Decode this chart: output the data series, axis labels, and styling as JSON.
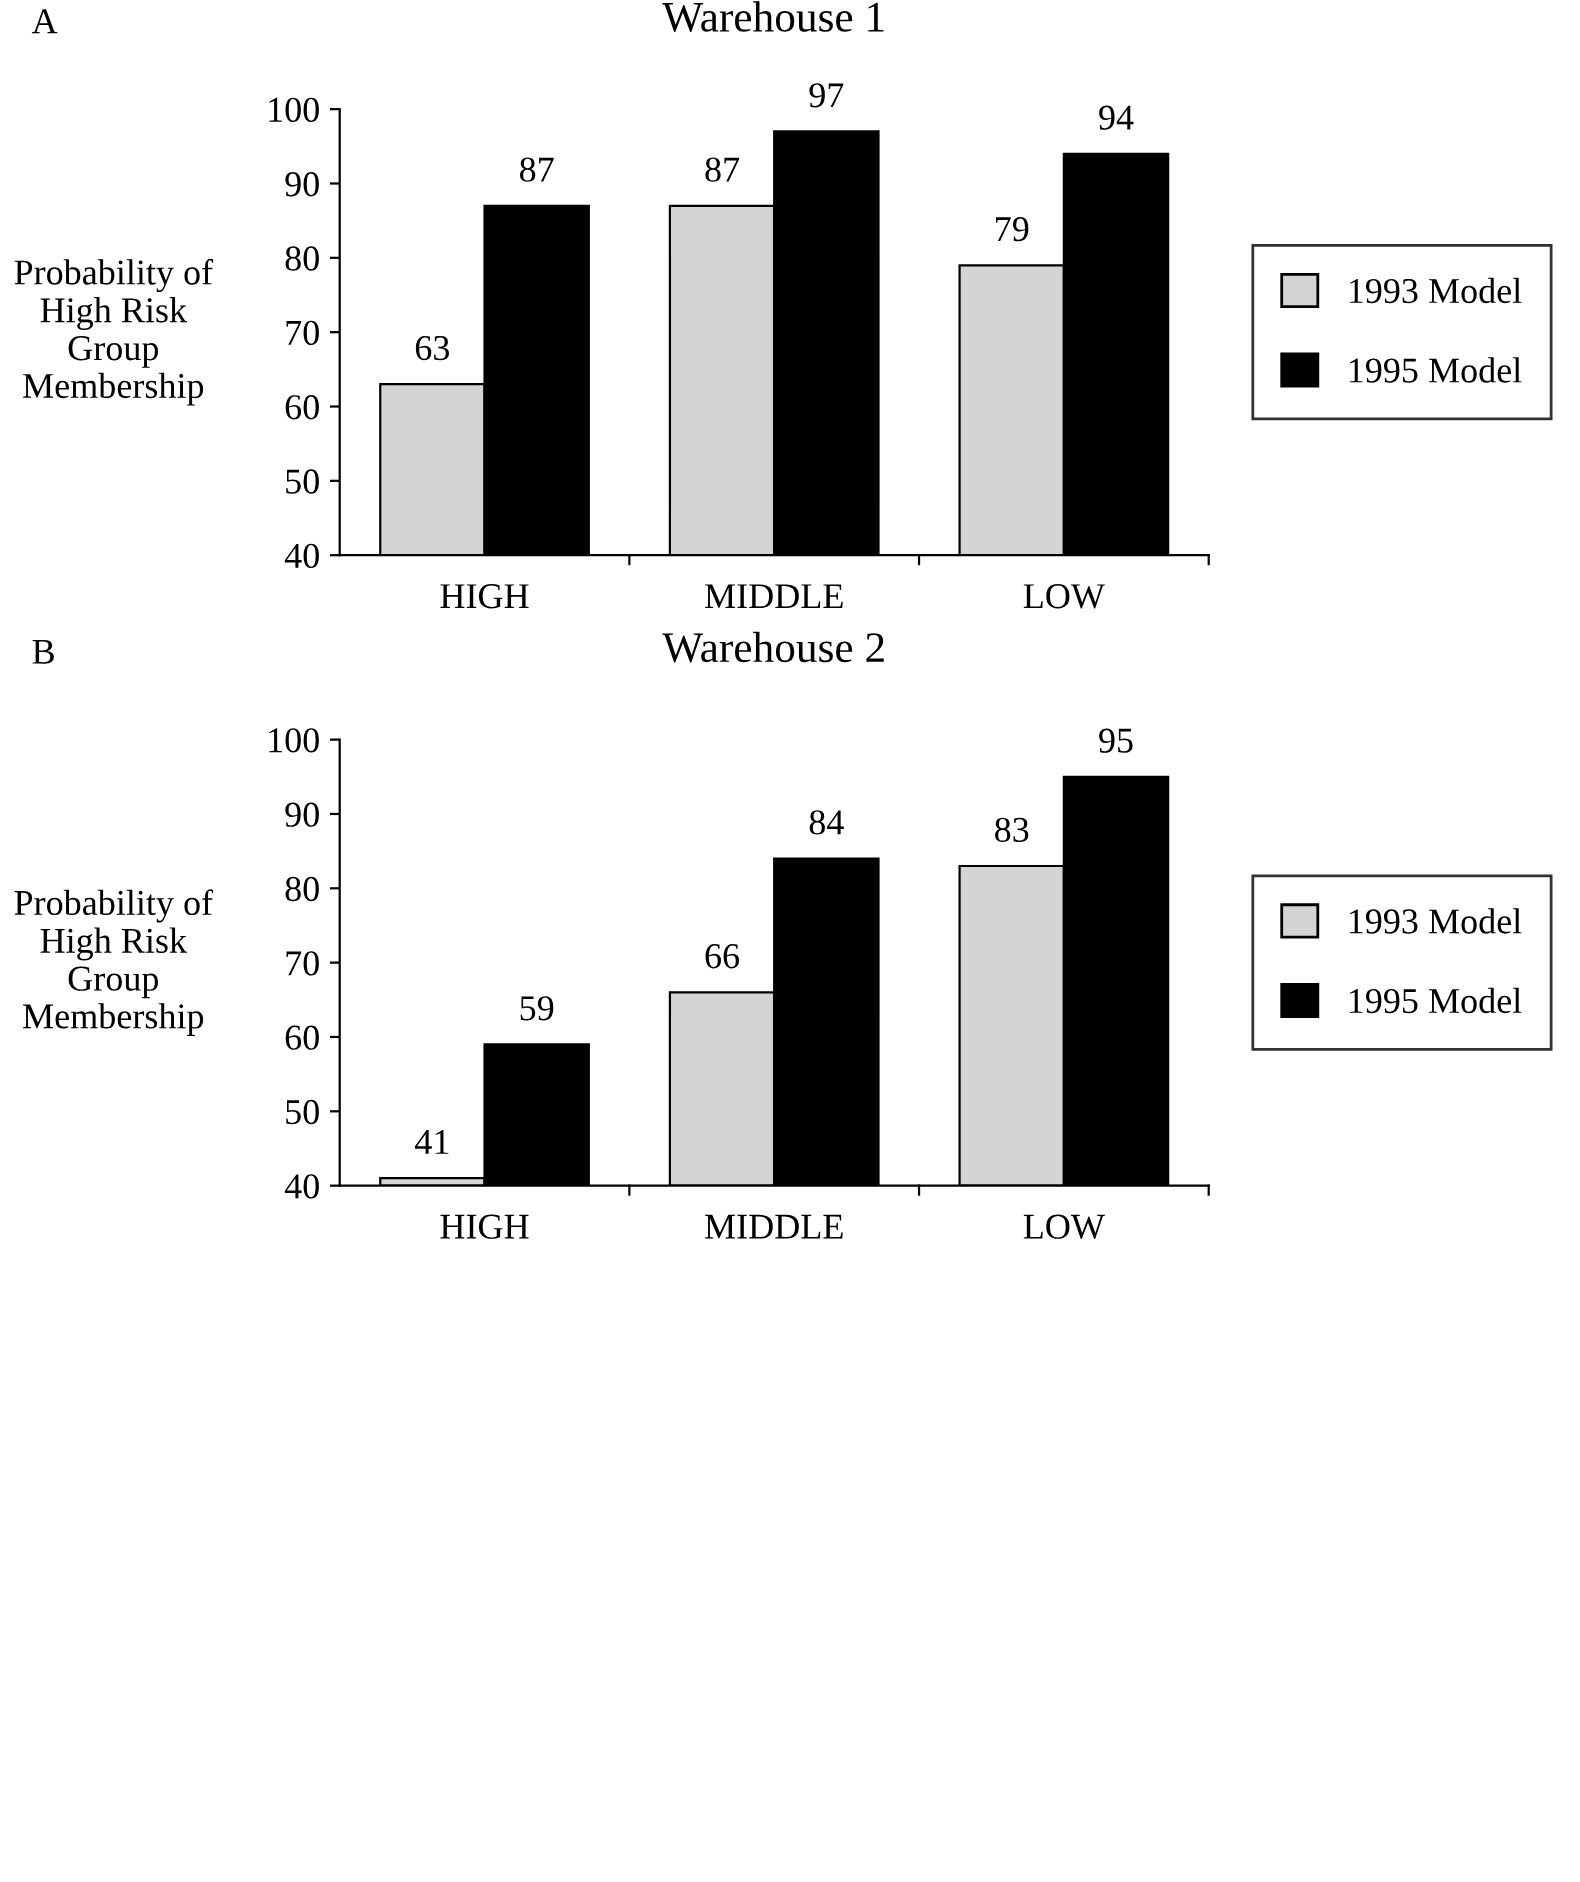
{
  "chart_data": [
    {
      "type": "bar",
      "title": "Warehouse 1",
      "annotations": [
        "A"
      ],
      "ylabel": "Probability of\nHigh Risk\nGroup\nMembership",
      "categories": [
        "HIGH",
        "MIDDLE",
        "LOW"
      ],
      "series": [
        {
          "name": "1993 Model",
          "color": "#d4d4d4",
          "values": [
            63,
            87,
            79
          ]
        },
        {
          "name": "1995 Model",
          "color": "#000000",
          "values": [
            87,
            97,
            94
          ]
        }
      ],
      "ylim": [
        40,
        100
      ],
      "yticks": [
        40,
        50,
        60,
        70,
        80,
        90,
        100
      ],
      "grid": false,
      "legend": "right",
      "data_labels": true
    },
    {
      "type": "bar",
      "title": "Warehouse 2",
      "annotations": [
        "B"
      ],
      "ylabel": "Probability of\nHigh Risk\nGroup\nMembership",
      "categories": [
        "HIGH",
        "MIDDLE",
        "LOW"
      ],
      "series": [
        {
          "name": "1993 Model",
          "color": "#d4d4d4",
          "values": [
            41,
            66,
            83
          ]
        },
        {
          "name": "1995 Model",
          "color": "#000000",
          "values": [
            59,
            84,
            95
          ]
        }
      ],
      "ylim": [
        40,
        100
      ],
      "yticks": [
        40,
        50,
        60,
        70,
        80,
        90,
        100
      ],
      "grid": false,
      "legend": "right",
      "data_labels": true
    }
  ]
}
